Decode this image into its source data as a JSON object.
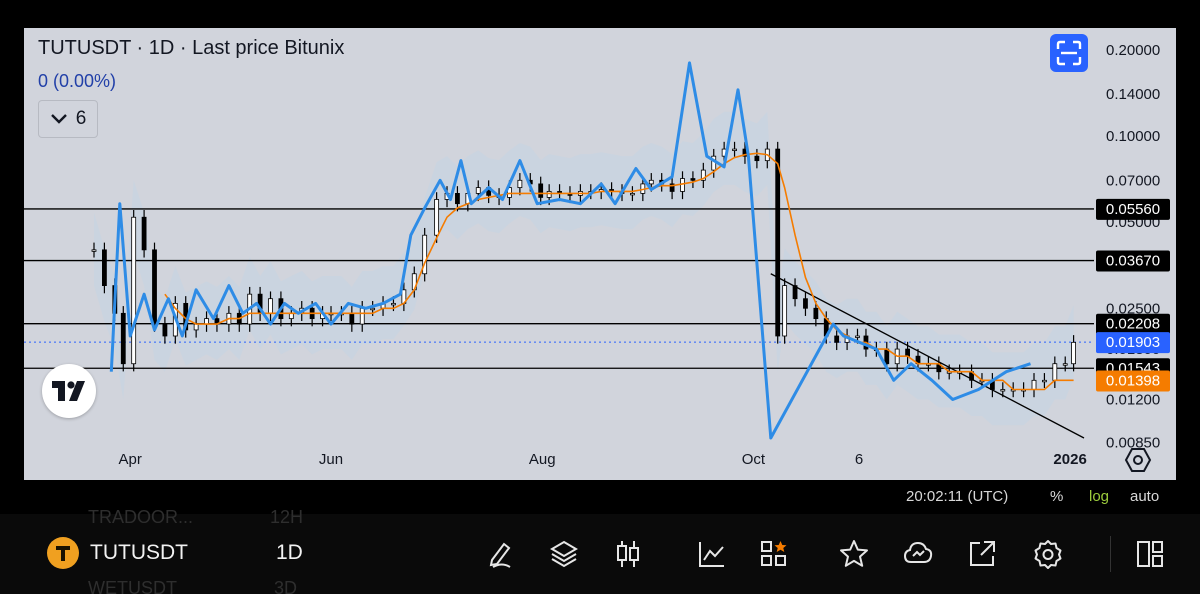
{
  "header": {
    "title": "TUTUSDT · 1D · Last price Bitunix",
    "change": "0 (0.00%)",
    "indicators_count": "6"
  },
  "price_scale": {
    "ticks": [
      "0.20000",
      "0.14000",
      "0.10000",
      "0.07000",
      "0.05000",
      "0.03500",
      "0.02500",
      "0.01800",
      "0.01200",
      "0.00850"
    ],
    "scale": "log"
  },
  "price_labels": [
    {
      "value": "0.05560",
      "color": "#000000"
    },
    {
      "value": "0.03670",
      "color": "#000000"
    },
    {
      "value": "0.02208",
      "color": "#000000"
    },
    {
      "value": "0.01903",
      "color": "#2962ff"
    },
    {
      "value": "0.01543",
      "color": "#000000"
    },
    {
      "value": "0.01398",
      "color": "#f57c00"
    }
  ],
  "time_axis": [
    "Apr",
    "Jun",
    "Aug",
    "Oct",
    "6",
    "2026"
  ],
  "status_bar": {
    "time": "20:02:11 (UTC)",
    "percent": "%",
    "log": "log",
    "auto": "auto"
  },
  "bottom_bar": {
    "symbol": "TUTUSDT",
    "interval": "1D",
    "ghost_above_symbol": "TRADOOR...",
    "ghost_above_interval": "12H",
    "ghost_below_symbol": "WETUSDT",
    "ghost_below_interval": "3D"
  },
  "icons": [
    "pencil-icon",
    "layers-icon",
    "candles-icon",
    "indicators-icon",
    "templates-icon",
    "star-icon",
    "alert-icon",
    "share-icon",
    "settings-icon",
    "layout-icon",
    "fullscreen-icon",
    "tradingview-logo"
  ],
  "colors": {
    "chart_bg": "#d1d4dc",
    "candle": "#000000",
    "zigzag": "#2e8ce6",
    "ma": "#f57c00",
    "last_price": "#2962ff",
    "accent": "#2962ff",
    "log_active": "#9ccc3c"
  },
  "chart_data": {
    "type": "line",
    "scale": "log",
    "ylim": [
      0.0078,
      0.22
    ],
    "x": [
      "Mar 24",
      "Mar 27",
      "Mar 30",
      "Apr 2",
      "Apr 5",
      "Apr 8",
      "Apr 11",
      "Apr 14",
      "Apr 17",
      "Apr 20",
      "Apr 23",
      "Apr 26",
      "Apr 29",
      "May 2",
      "May 5",
      "May 8",
      "May 11",
      "May 14",
      "May 17",
      "May 20",
      "May 23",
      "May 26",
      "May 29",
      "Jun 1",
      "Jun 4",
      "Jun 7",
      "Jun 10",
      "Jun 13",
      "Jun 16",
      "Jun 19",
      "Jun 22",
      "Jun 25",
      "Jun 28",
      "Jul 1",
      "Jul 4",
      "Jul 7",
      "Jul 10",
      "Jul 13",
      "Jul 16",
      "Jul 19",
      "Jul 22",
      "Jul 25",
      "Jul 28",
      "Jul 31",
      "Aug 3",
      "Aug 6",
      "Aug 9",
      "Aug 12",
      "Aug 15",
      "Aug 18",
      "Aug 21",
      "Aug 24",
      "Aug 27",
      "Aug 30",
      "Sep 2",
      "Sep 5",
      "Sep 8",
      "Sep 11",
      "Sep 14",
      "Sep 17",
      "Sep 20",
      "Sep 23",
      "Sep 26",
      "Sep 29",
      "Oct 2",
      "Oct 5",
      "Oct 8",
      "Oct 10",
      "Oct 13",
      "Oct 16",
      "Oct 19",
      "Oct 22",
      "Oct 25",
      "Oct 28",
      "Oct 31",
      "Nov 3",
      "Nov 6",
      "Nov 9",
      "Nov 12",
      "Nov 15",
      "Nov 18",
      "Nov 21",
      "Nov 24",
      "Nov 27",
      "Nov 30",
      "Dec 3",
      "Dec 6",
      "Dec 9",
      "Dec 12",
      "Dec 15",
      "Dec 18",
      "Dec 21",
      "Dec 24",
      "Dec 27",
      "Dec 30",
      "Jan 2"
    ],
    "series": [
      {
        "name": "",
        "kind": "close",
        "values": [
          0.04,
          0.03,
          0.024,
          0.016,
          0.052,
          0.04,
          0.022,
          0.02,
          0.026,
          0.021,
          0.022,
          0.023,
          0.022,
          0.024,
          0.022,
          0.028,
          0.024,
          0.027,
          0.023,
          0.024,
          0.025,
          0.023,
          0.024,
          0.024,
          0.024,
          0.022,
          0.025,
          0.025,
          0.026,
          0.026,
          0.029,
          0.033,
          0.045,
          0.06,
          0.063,
          0.058,
          0.063,
          0.066,
          0.062,
          0.061,
          0.066,
          0.07,
          0.068,
          0.061,
          0.064,
          0.063,
          0.062,
          0.064,
          0.064,
          0.065,
          0.064,
          0.063,
          0.063,
          0.068,
          0.07,
          0.068,
          0.064,
          0.071,
          0.07,
          0.076,
          0.085,
          0.09,
          0.09,
          0.085,
          0.082,
          0.09,
          0.02,
          0.03,
          0.027,
          0.025,
          0.023,
          0.02,
          0.019,
          0.02,
          0.02,
          0.018,
          0.018,
          0.016,
          0.018,
          0.017,
          0.016,
          0.016,
          0.015,
          0.015,
          0.015,
          0.014,
          0.014,
          0.013,
          0.013,
          0.013,
          0.013,
          0.014,
          0.014,
          0.016,
          0.016,
          0.019
        ]
      },
      {
        "name": "",
        "kind": "moving-average",
        "values": [
          null,
          null,
          null,
          null,
          null,
          null,
          null,
          0.028,
          0.025,
          0.023,
          0.022,
          0.022,
          0.022,
          0.023,
          0.023,
          0.024,
          0.024,
          0.024,
          0.024,
          0.024,
          0.024,
          0.024,
          0.024,
          0.024,
          0.024,
          0.024,
          0.024,
          0.024,
          0.025,
          0.025,
          0.026,
          0.029,
          0.036,
          0.044,
          0.052,
          0.056,
          0.058,
          0.06,
          0.061,
          0.062,
          0.063,
          0.063,
          0.063,
          0.063,
          0.063,
          0.063,
          0.063,
          0.063,
          0.063,
          0.064,
          0.064,
          0.064,
          0.064,
          0.065,
          0.066,
          0.067,
          0.067,
          0.068,
          0.069,
          0.071,
          0.075,
          0.08,
          0.084,
          0.086,
          0.087,
          0.086,
          0.08,
          0.066,
          0.045,
          0.032,
          0.026,
          0.023,
          0.021,
          0.02,
          0.019,
          0.019,
          0.018,
          0.018,
          0.017,
          0.017,
          0.016,
          0.016,
          0.016,
          0.015,
          0.015,
          0.015,
          0.014,
          0.014,
          0.014,
          0.013,
          0.013,
          0.013,
          0.013,
          0.014,
          0.014,
          0.014
        ]
      },
      {
        "name": "",
        "kind": "zigzag",
        "points": [
          [
            "Mar 29",
            0.015
          ],
          [
            "Apr 1",
            0.058
          ],
          [
            "Apr 4",
            0.02
          ],
          [
            "Apr 8",
            0.028
          ],
          [
            "Apr 11",
            0.021
          ],
          [
            "Apr 15",
            0.027
          ],
          [
            "Apr 19",
            0.02
          ],
          [
            "Apr 23",
            0.029
          ],
          [
            "Apr 28",
            0.023
          ],
          [
            "May 2",
            0.03
          ],
          [
            "May 6",
            0.024
          ],
          [
            "May 10",
            0.026
          ],
          [
            "May 14",
            0.022
          ],
          [
            "May 18",
            0.026
          ],
          [
            "May 22",
            0.024
          ],
          [
            "May 27",
            0.026
          ],
          [
            "Jun 1",
            0.022
          ],
          [
            "Jun 6",
            0.026
          ],
          [
            "Jun 11",
            0.025
          ],
          [
            "Jun 16",
            0.026
          ],
          [
            "Jun 21",
            0.028
          ],
          [
            "Jun 24",
            0.045
          ],
          [
            "Jun 28",
            0.056
          ],
          [
            "Jul 2",
            0.07
          ],
          [
            "Jul 5",
            0.06
          ],
          [
            "Jul 8",
            0.082
          ],
          [
            "Jul 11",
            0.058
          ],
          [
            "Jul 16",
            0.066
          ],
          [
            "Jul 20",
            0.06
          ],
          [
            "Jul 25",
            0.082
          ],
          [
            "Jul 30",
            0.058
          ],
          [
            "Aug 6",
            0.06
          ],
          [
            "Aug 12",
            0.058
          ],
          [
            "Aug 18",
            0.068
          ],
          [
            "Aug 22",
            0.058
          ],
          [
            "Aug 28",
            0.077
          ],
          [
            "Sep 2",
            0.065
          ],
          [
            "Sep 8",
            0.072
          ],
          [
            "Sep 13",
            0.18
          ],
          [
            "Sep 18",
            0.085
          ],
          [
            "Sep 23",
            0.078
          ],
          [
            "Sep 27",
            0.145
          ],
          [
            "Sep 30",
            0.085
          ],
          [
            "Oct 6",
            0.0088
          ],
          [
            "Oct 24",
            0.022
          ],
          [
            "Oct 27",
            0.02
          ],
          [
            "Nov 6",
            0.018
          ],
          [
            "Nov 11",
            0.014
          ],
          [
            "Nov 16",
            0.016
          ],
          [
            "Nov 22",
            0.014
          ],
          [
            "Nov 28",
            0.012
          ],
          [
            "Dec 5",
            0.013
          ],
          [
            "Dec 13",
            0.015
          ],
          [
            "Dec 20",
            0.016
          ]
        ]
      }
    ],
    "horizontal_lines": [
      0.0556,
      0.0367,
      0.02208,
      0.01543
    ],
    "trendline": {
      "from": [
        "Oct 6",
        0.033
      ],
      "to": [
        "Jan 5",
        0.0088
      ]
    },
    "last_price": 0.01903,
    "ma_value": 0.01398
  }
}
